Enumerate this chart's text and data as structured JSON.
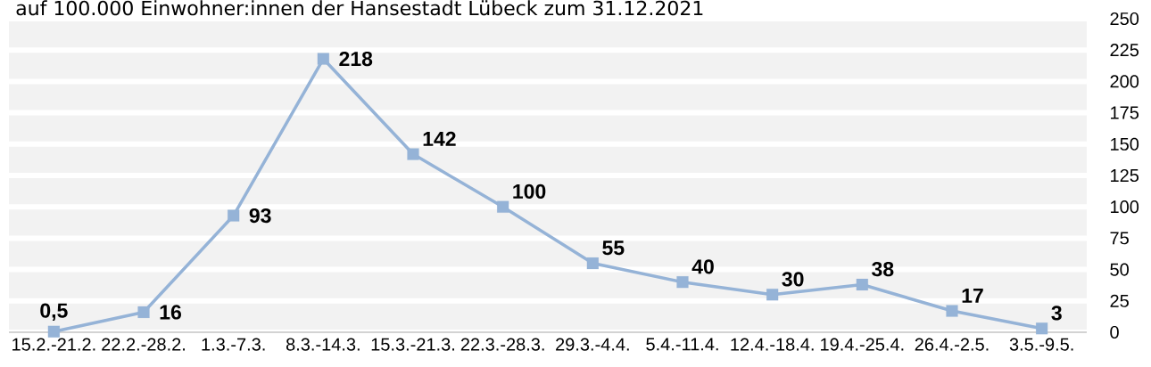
{
  "chart_data": {
    "type": "line",
    "title": "auf 100.000 Einwohner:innen der Hansestadt Lübeck zum 31.12.2021",
    "categories": [
      "15.2.-21.2.",
      "22.2.-28.2.",
      "1.3.-7.3.",
      "8.3.-14.3.",
      "15.3.-21.3.",
      "22.3.-28.3.",
      "29.3.-4.4.",
      "5.4.-11.4.",
      "12.4.-18.4.",
      "19.4.-25.4.",
      "26.4.-2.5.",
      "3.5.-9.5."
    ],
    "series": [
      {
        "color": "#95b3d7",
        "values": [
          0.5,
          16,
          93,
          218,
          142,
          100,
          55,
          40,
          30,
          38,
          17,
          3
        ],
        "value_labels": [
          "0,5",
          "16",
          "93",
          "218",
          "142",
          "100",
          "55",
          "40",
          "30",
          "38",
          "17",
          "3"
        ]
      }
    ],
    "ylim": [
      0,
      250
    ],
    "yticks": [
      0,
      25,
      50,
      75,
      100,
      125,
      150,
      175,
      200,
      225,
      250
    ],
    "grid": "y",
    "marker": "square",
    "line_style": "solid"
  }
}
